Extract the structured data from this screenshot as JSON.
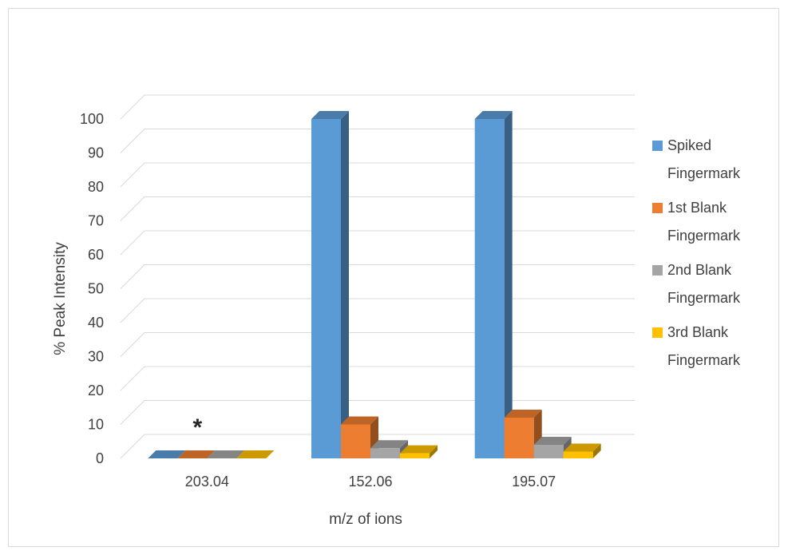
{
  "chart_data": {
    "type": "bar",
    "title": "",
    "xlabel": "m/z of ions",
    "ylabel": "% Peak Intensity",
    "ylim": [
      0,
      100
    ],
    "yticks": [
      0,
      10,
      20,
      30,
      40,
      50,
      60,
      70,
      80,
      90,
      100
    ],
    "grid": true,
    "legend_position": "right",
    "categories": [
      "203.04",
      "152.06",
      "195.07"
    ],
    "series": [
      {
        "name": "Spiked Fingermark",
        "legend_lines": [
          "Spiked",
          "Fingermark"
        ],
        "color": "#5b9bd5",
        "values": [
          0,
          100,
          100
        ]
      },
      {
        "name": "1st Blank Fingermark",
        "legend_lines": [
          "1st Blank",
          "Fingermark"
        ],
        "color": "#ed7d31",
        "values": [
          0,
          10,
          12
        ]
      },
      {
        "name": "2nd Blank Fingermark",
        "legend_lines": [
          "2nd Blank",
          "Fingermark"
        ],
        "color": "#a5a5a5",
        "values": [
          0,
          3,
          4
        ]
      },
      {
        "name": "3rd  Blank Fingermark",
        "legend_lines": [
          "3rd  Blank",
          "Fingermark"
        ],
        "color": "#ffc000",
        "values": [
          0,
          1.5,
          2
        ]
      }
    ],
    "annotations": [
      {
        "text": "*",
        "category": "203.04"
      }
    ]
  }
}
